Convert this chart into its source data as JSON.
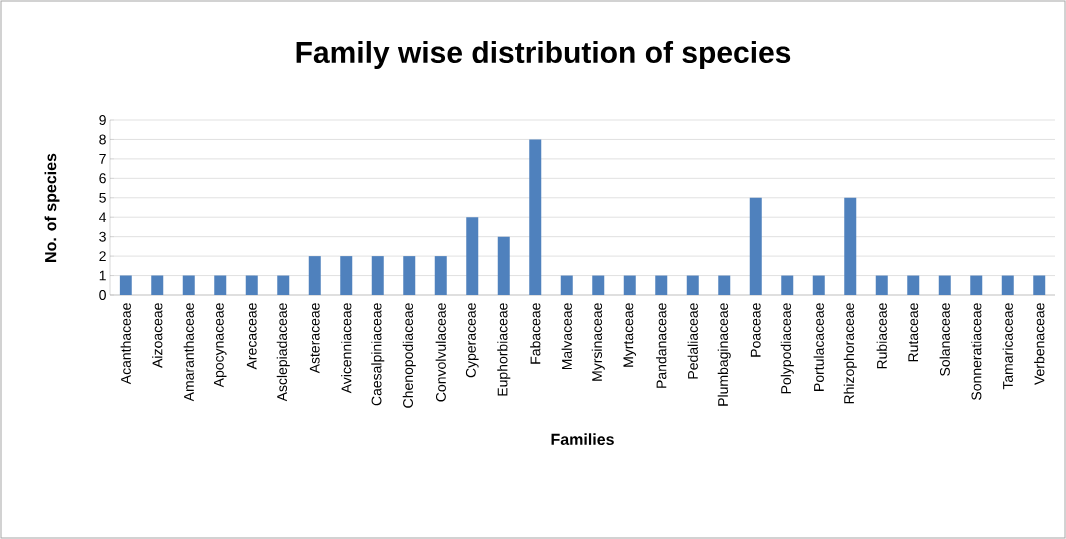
{
  "chart_data": {
    "type": "bar",
    "title": "Family wise distribution of species",
    "xlabel": "Families",
    "ylabel": "No. of species",
    "categories": [
      "Acanthaceae",
      "Aizoaceae",
      "Amaranthaceae",
      "Apocynaceae",
      "Arecaceae",
      "Asclepiadaceae",
      "Asteraceae",
      "Avicenniaceae",
      "Caesalpiniaceae",
      "Chenopodiaceae",
      "Convolvulaceae",
      "Cyperaceae",
      "Euphorbiaceae",
      "Fabaceae",
      "Malvaceae",
      "Myrsinaceae",
      "Myrtaceae",
      "Pandanaceae",
      "Pedaliaceae",
      "Plumbaginaceae",
      "Poaceae",
      "Polypodiaceae",
      "Portulacaceae",
      "Rhizophoraceae",
      "Rubiaceae",
      "Rutaceae",
      "Solanaceae",
      "Sonneratiaceae",
      "Tamaricaceae",
      "Verbenaceae"
    ],
    "values": [
      1,
      1,
      1,
      1,
      1,
      1,
      2,
      2,
      2,
      2,
      2,
      4,
      3,
      8,
      1,
      1,
      1,
      1,
      1,
      1,
      5,
      1,
      1,
      5,
      1,
      1,
      1,
      1,
      1,
      1
    ],
    "color": "#4f81bd",
    "ylim": [
      0,
      9
    ],
    "yticks": [
      0,
      1,
      2,
      3,
      4,
      5,
      6,
      7,
      8,
      9
    ],
    "grid": "y"
  }
}
